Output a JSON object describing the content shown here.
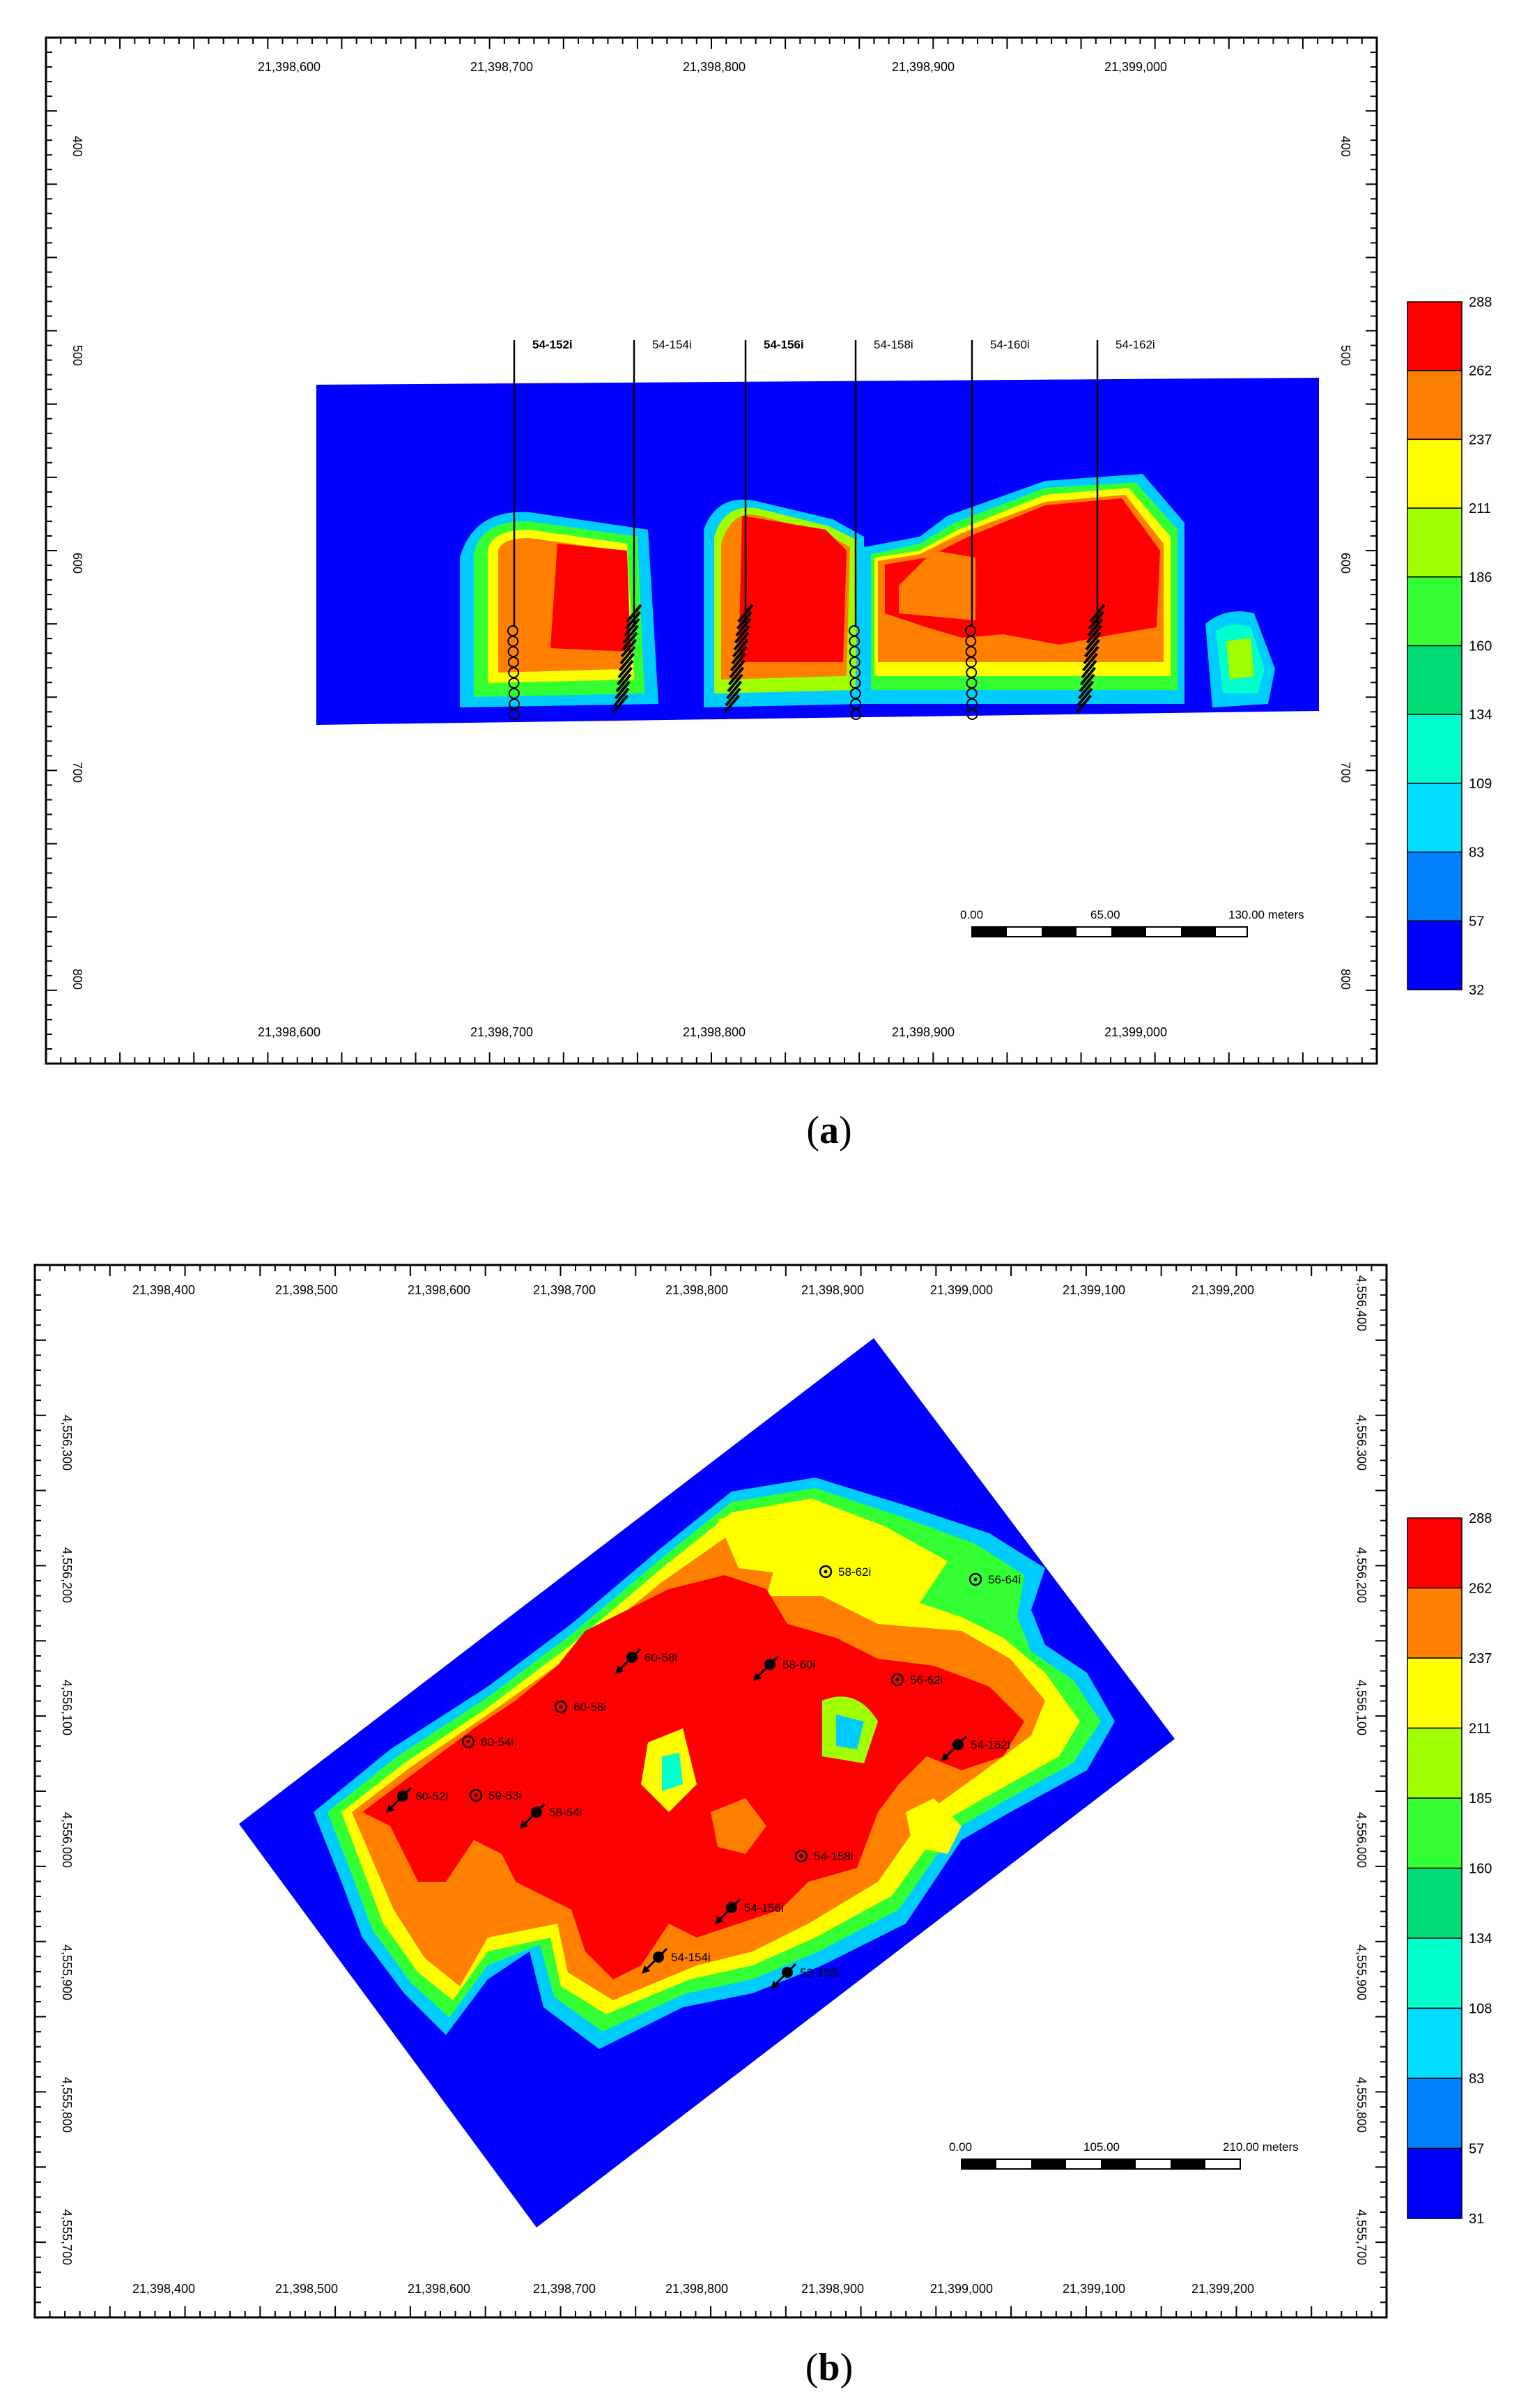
{
  "panel_a": {
    "caption_letter": "a",
    "x_ticks_top": [
      "21,398,600",
      "21,398,700",
      "21,398,800",
      "21,398,900",
      "21,399,000"
    ],
    "x_ticks_bottom": [
      "21,398,600",
      "21,398,700",
      "21,398,800",
      "21,398,900",
      "21,399,000"
    ],
    "y_ticks_left": [
      "400",
      "500",
      "600",
      "700",
      "800"
    ],
    "y_ticks_right": [
      "400",
      "500",
      "600",
      "700",
      "800"
    ],
    "wells": [
      "54-152i",
      "54-154i",
      "54-156i",
      "54-158i",
      "54-160i",
      "54-162i"
    ],
    "scale_bar": {
      "labels": [
        "0.00",
        "65.00",
        "130.00 meters"
      ]
    },
    "legend": {
      "values": [
        "288",
        "262",
        "237",
        "211",
        "186",
        "160",
        "134",
        "109",
        "83",
        "57",
        "32"
      ]
    }
  },
  "panel_b": {
    "caption_letter": "b",
    "x_ticks_top": [
      "21,398,400",
      "21,398,500",
      "21,398,600",
      "21,398,700",
      "21,398,800",
      "21,398,900",
      "21,399,000",
      "21,399,100",
      "21,399,200"
    ],
    "x_ticks_bottom": [
      "21,398,400",
      "21,398,500",
      "21,398,600",
      "21,398,700",
      "21,398,800",
      "21,398,900",
      "21,399,000",
      "21,399,100",
      "21,399,200"
    ],
    "y_ticks_left": [
      "4,556,300",
      "4,556,200",
      "4,556,100",
      "4,556,000",
      "4,555,900",
      "4,555,800",
      "4,555,700"
    ],
    "y_ticks_right": [
      "4,556,400",
      "4,556,300",
      "4,556,200",
      "4,556,100",
      "4,556,000",
      "4,555,900",
      "4,555,800",
      "4,555,700"
    ],
    "wells": [
      "58-62i",
      "56-64i",
      "60-58i",
      "58-60i",
      "56-62i",
      "60-56i",
      "60-54i",
      "54-162i",
      "60-52i",
      "59-53i",
      "58-54i",
      "54-158i",
      "54-156i",
      "54-154i",
      "52-158i"
    ],
    "scale_bar": {
      "labels": [
        "0.00",
        "105.00",
        "210.00 meters"
      ]
    },
    "legend": {
      "values": [
        "288",
        "262",
        "237",
        "211",
        "185",
        "160",
        "134",
        "108",
        "83",
        "57",
        "31"
      ]
    }
  },
  "palette": [
    "#ff0000",
    "#ff7f00",
    "#ffff00",
    "#a0ff00",
    "#33ff33",
    "#00dd77",
    "#00ffcc",
    "#00ddff",
    "#0080ff",
    "#0000ff"
  ]
}
